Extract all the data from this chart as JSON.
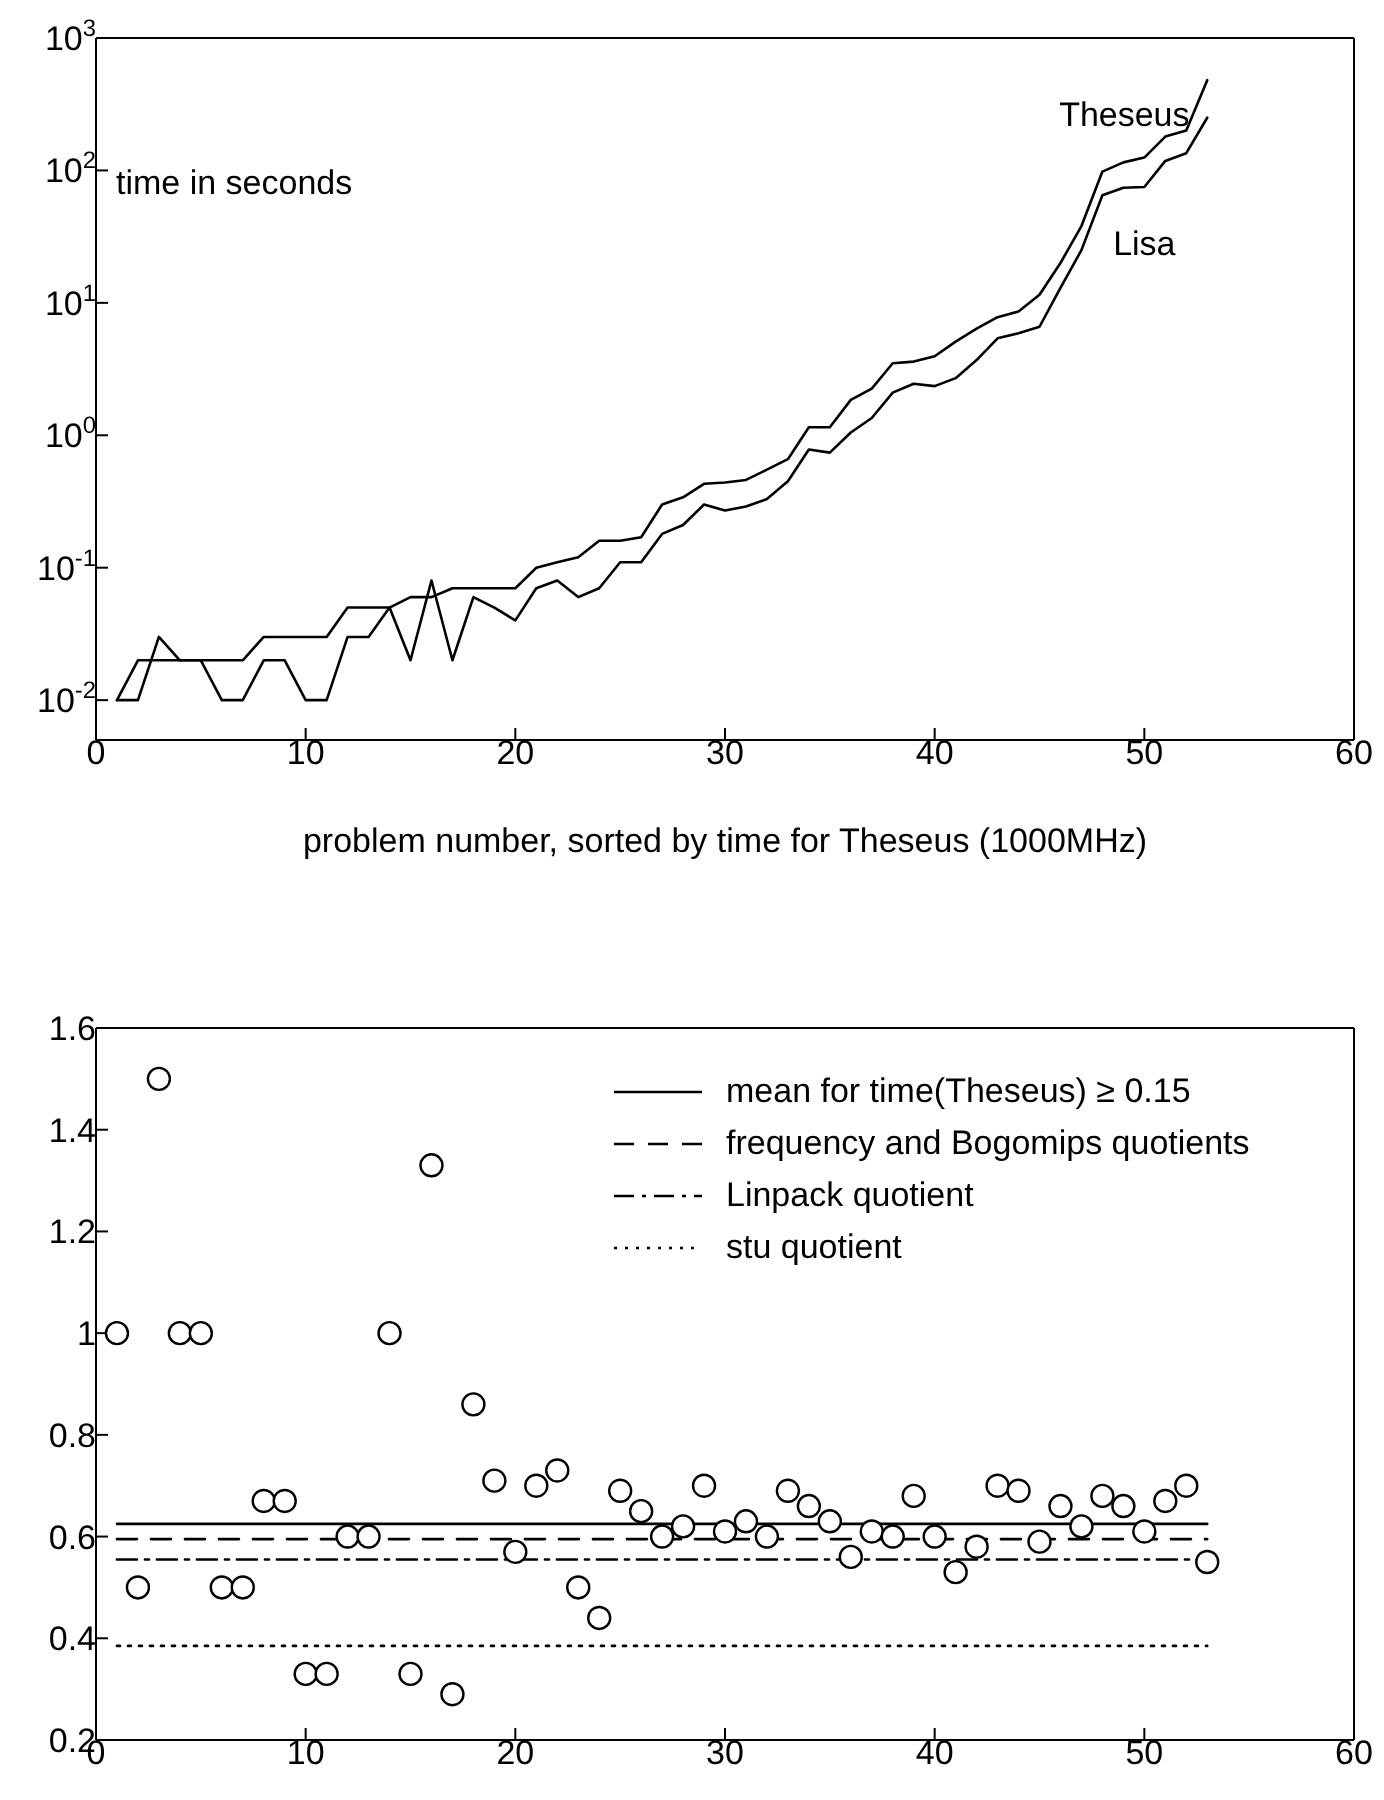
{
  "chart_data": [
    {
      "type": "line",
      "ylabel": "time in seconds",
      "xlabel": "problem number, sorted by time for Theseus (1000MHz)",
      "log": "y",
      "grid": false,
      "legend": false,
      "line_style": "solid",
      "x": [
        1,
        2,
        3,
        4,
        5,
        6,
        7,
        8,
        9,
        10,
        11,
        12,
        13,
        14,
        15,
        16,
        17,
        18,
        19,
        20,
        21,
        22,
        23,
        24,
        25,
        26,
        27,
        28,
        29,
        30,
        31,
        32,
        33,
        34,
        35,
        36,
        37,
        38,
        39,
        40,
        41,
        42,
        43,
        44,
        45,
        46,
        47,
        48,
        49,
        50,
        51,
        52,
        53
      ],
      "xlim": [
        0,
        60
      ],
      "xticks": [
        0,
        10,
        20,
        30,
        40,
        50,
        60
      ],
      "ylim": [
        0.005,
        1000
      ],
      "yticks": [
        {
          "value": 0.01,
          "label": "10$^{-2}$"
        },
        {
          "value": 0.1,
          "label": "10$^{-1}$"
        },
        {
          "value": 1,
          "label": "10$^{0}$"
        },
        {
          "value": 10,
          "label": "10$^{1}$"
        },
        {
          "value": 100,
          "label": "10$^{2}$"
        },
        {
          "value": 1000,
          "label": "10$^{3}$"
        }
      ],
      "series": [
        {
          "name": "Theseus",
          "color": "#000000",
          "values": [
            0.01,
            0.02,
            0.02,
            0.02,
            0.02,
            0.02,
            0.02,
            0.03,
            0.03,
            0.03,
            0.03,
            0.05,
            0.05,
            0.05,
            0.06,
            0.06,
            0.07,
            0.07,
            0.07,
            0.07,
            0.1,
            0.11,
            0.12,
            0.16,
            0.16,
            0.17,
            0.3,
            0.34,
            0.43,
            0.44,
            0.46,
            0.55,
            0.66,
            1.15,
            1.15,
            1.85,
            2.25,
            3.5,
            3.6,
            3.95,
            5.1,
            6.4,
            7.8,
            8.6,
            11.5,
            20,
            38,
            98,
            115,
            125,
            180,
            200,
            480
          ]
        },
        {
          "name": "Lisa",
          "color": "#000000",
          "values": [
            0.01,
            0.01,
            0.03,
            0.02,
            0.02,
            0.01,
            0.01,
            0.02,
            0.02,
            0.01,
            0.01,
            0.03,
            0.03,
            0.05,
            0.02,
            0.08,
            0.02,
            0.06,
            0.05,
            0.04,
            0.07,
            0.08,
            0.06,
            0.07,
            0.11,
            0.11,
            0.18,
            0.21,
            0.3,
            0.27,
            0.29,
            0.33,
            0.45,
            0.78,
            0.74,
            1.05,
            1.35,
            2.1,
            2.45,
            2.35,
            2.7,
            3.7,
            5.4,
            5.9,
            6.6,
            13,
            25,
            65,
            74,
            75,
            118,
            135,
            250
          ]
        }
      ]
    },
    {
      "type": "scatter",
      "grid": false,
      "legend": "top right",
      "xlim": [
        0,
        60
      ],
      "xticks": [
        0,
        10,
        20,
        30,
        40,
        50,
        60
      ],
      "ylim": [
        0.2,
        1.6
      ],
      "yticks": [
        0.2,
        0.4,
        0.6,
        0.8,
        1,
        1.2,
        1.4,
        1.6
      ],
      "series": [
        {
          "color": "#000000",
          "marker": "circle",
          "x": [
            1,
            2,
            3,
            4,
            5,
            6,
            7,
            8,
            9,
            10,
            11,
            12,
            13,
            14,
            15,
            16,
            17,
            18,
            19,
            20,
            21,
            22,
            23,
            24,
            25,
            26,
            27,
            28,
            29,
            30,
            31,
            32,
            33,
            34,
            35,
            36,
            37,
            38,
            39,
            40,
            41,
            42,
            43,
            44,
            45,
            46,
            47,
            48,
            49,
            50,
            51,
            52,
            53
          ],
          "values": [
            1.0,
            0.5,
            1.5,
            1.0,
            1.0,
            0.5,
            0.5,
            0.67,
            0.67,
            0.33,
            0.33,
            0.6,
            0.6,
            1.0,
            0.33,
            1.33,
            0.29,
            0.86,
            0.71,
            0.57,
            0.7,
            0.73,
            0.5,
            0.44,
            0.69,
            0.65,
            0.6,
            0.62,
            0.7,
            0.61,
            0.63,
            0.6,
            0.69,
            0.66,
            0.63,
            0.56,
            0.61,
            0.6,
            0.68,
            0.6,
            0.53,
            0.58,
            0.7,
            0.69,
            0.59,
            0.66,
            0.62,
            0.68,
            0.66,
            0.61,
            0.67,
            0.7,
            0.55
          ]
        },
        {
          "type": "line",
          "name": "mean for time(Theseus) ≥ 0.15",
          "color": "#000000",
          "line_style": "solid",
          "x": [
            1,
            53
          ],
          "values": [
            0.625,
            0.625
          ]
        },
        {
          "type": "line",
          "name": "frequency and Bogomips quotients",
          "color": "#000000",
          "line_style": "dashed",
          "x": [
            1,
            53
          ],
          "values": [
            0.595,
            0.595
          ]
        },
        {
          "type": "line",
          "name": "Linpack quotient",
          "color": "#000000",
          "line_style": "dashdot",
          "x": [
            1,
            53
          ],
          "values": [
            0.555,
            0.555
          ]
        },
        {
          "type": "line",
          "name": "stu quotient",
          "color": "#000000",
          "line_style": "dotted",
          "x": [
            1,
            53
          ],
          "values": [
            0.385,
            0.385
          ]
        }
      ]
    }
  ]
}
